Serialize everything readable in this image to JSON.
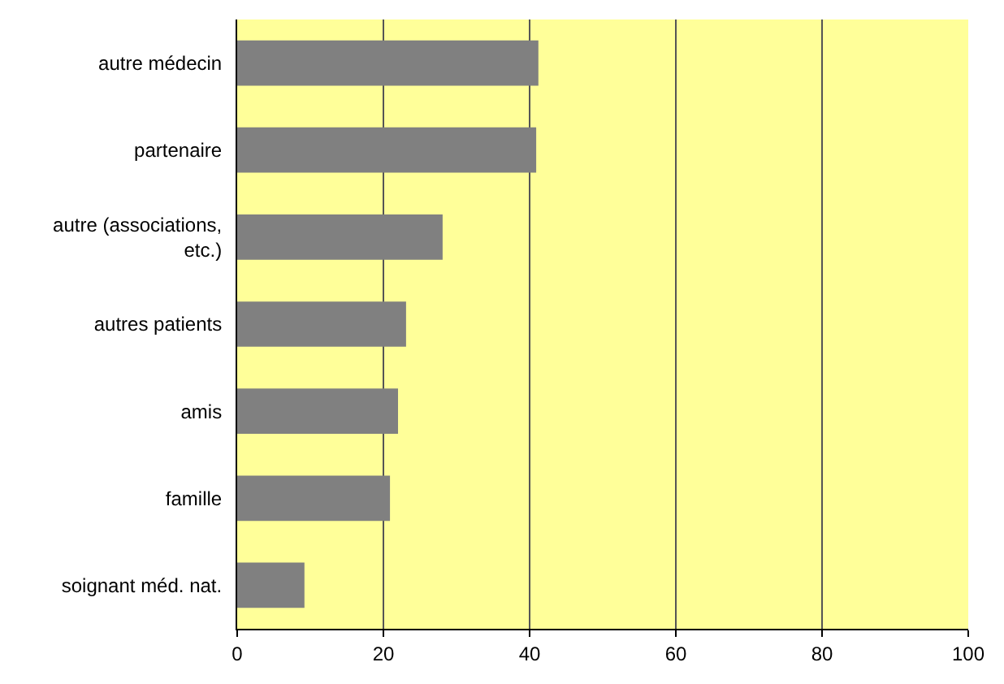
{
  "chart_data": {
    "type": "bar",
    "orientation": "horizontal",
    "categories": [
      "autre médecin",
      "partenaire",
      "autre (associations, etc.)",
      "autres patients",
      "amis",
      "famille",
      "soignant méd. nat."
    ],
    "values": [
      41.2,
      40.9,
      28.1,
      23.1,
      22.0,
      20.9,
      9.2
    ],
    "color": "#808080",
    "xlim": [
      0,
      100
    ],
    "xticks": [
      0,
      20,
      40,
      60,
      80,
      100
    ],
    "grid": "x"
  }
}
